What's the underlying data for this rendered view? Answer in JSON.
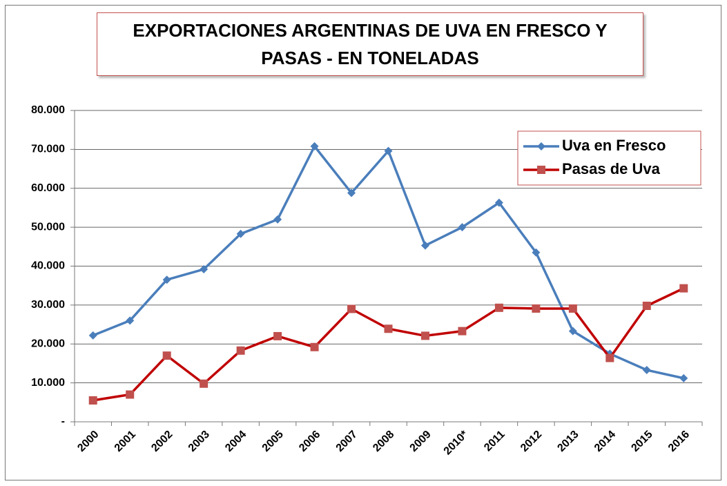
{
  "chart_data": {
    "type": "line",
    "title": "EXPORTACIONES ARGENTINAS DE UVA EN FRESCO Y PASAS - EN TONELADAS",
    "categories": [
      "2000",
      "2001",
      "2002",
      "2003",
      "2004",
      "2005",
      "2006",
      "2007",
      "2008",
      "2009",
      "2010*",
      "2011",
      "2012",
      "2013",
      "2014",
      "2015",
      "2016"
    ],
    "series": [
      {
        "name": "Uva en Fresco",
        "color": "#4a7ebb",
        "marker": "diamond",
        "values": [
          22200,
          26000,
          36500,
          39200,
          48300,
          52000,
          70800,
          58800,
          69600,
          45300,
          50000,
          56300,
          43500,
          23300,
          17500,
          13300,
          11200
        ]
      },
      {
        "name": "Pasas de Uva",
        "color": "#c00000",
        "marker": "square",
        "values": [
          5500,
          7000,
          17000,
          9800,
          18300,
          22000,
          19200,
          29000,
          23900,
          22100,
          23300,
          29300,
          29100,
          29100,
          16400,
          29800,
          34300
        ]
      }
    ],
    "ylim": [
      0,
      80000
    ],
    "yticks": [
      {
        "value": 0,
        "label": "-"
      },
      {
        "value": 10000,
        "label": "10.000"
      },
      {
        "value": 20000,
        "label": "20.000"
      },
      {
        "value": 30000,
        "label": "30.000"
      },
      {
        "value": 40000,
        "label": "40.000"
      },
      {
        "value": 50000,
        "label": "50.000"
      },
      {
        "value": 60000,
        "label": "60.000"
      },
      {
        "value": 70000,
        "label": "70.000"
      },
      {
        "value": 80000,
        "label": "80.000"
      }
    ],
    "grid": true,
    "legend": "upper right"
  }
}
